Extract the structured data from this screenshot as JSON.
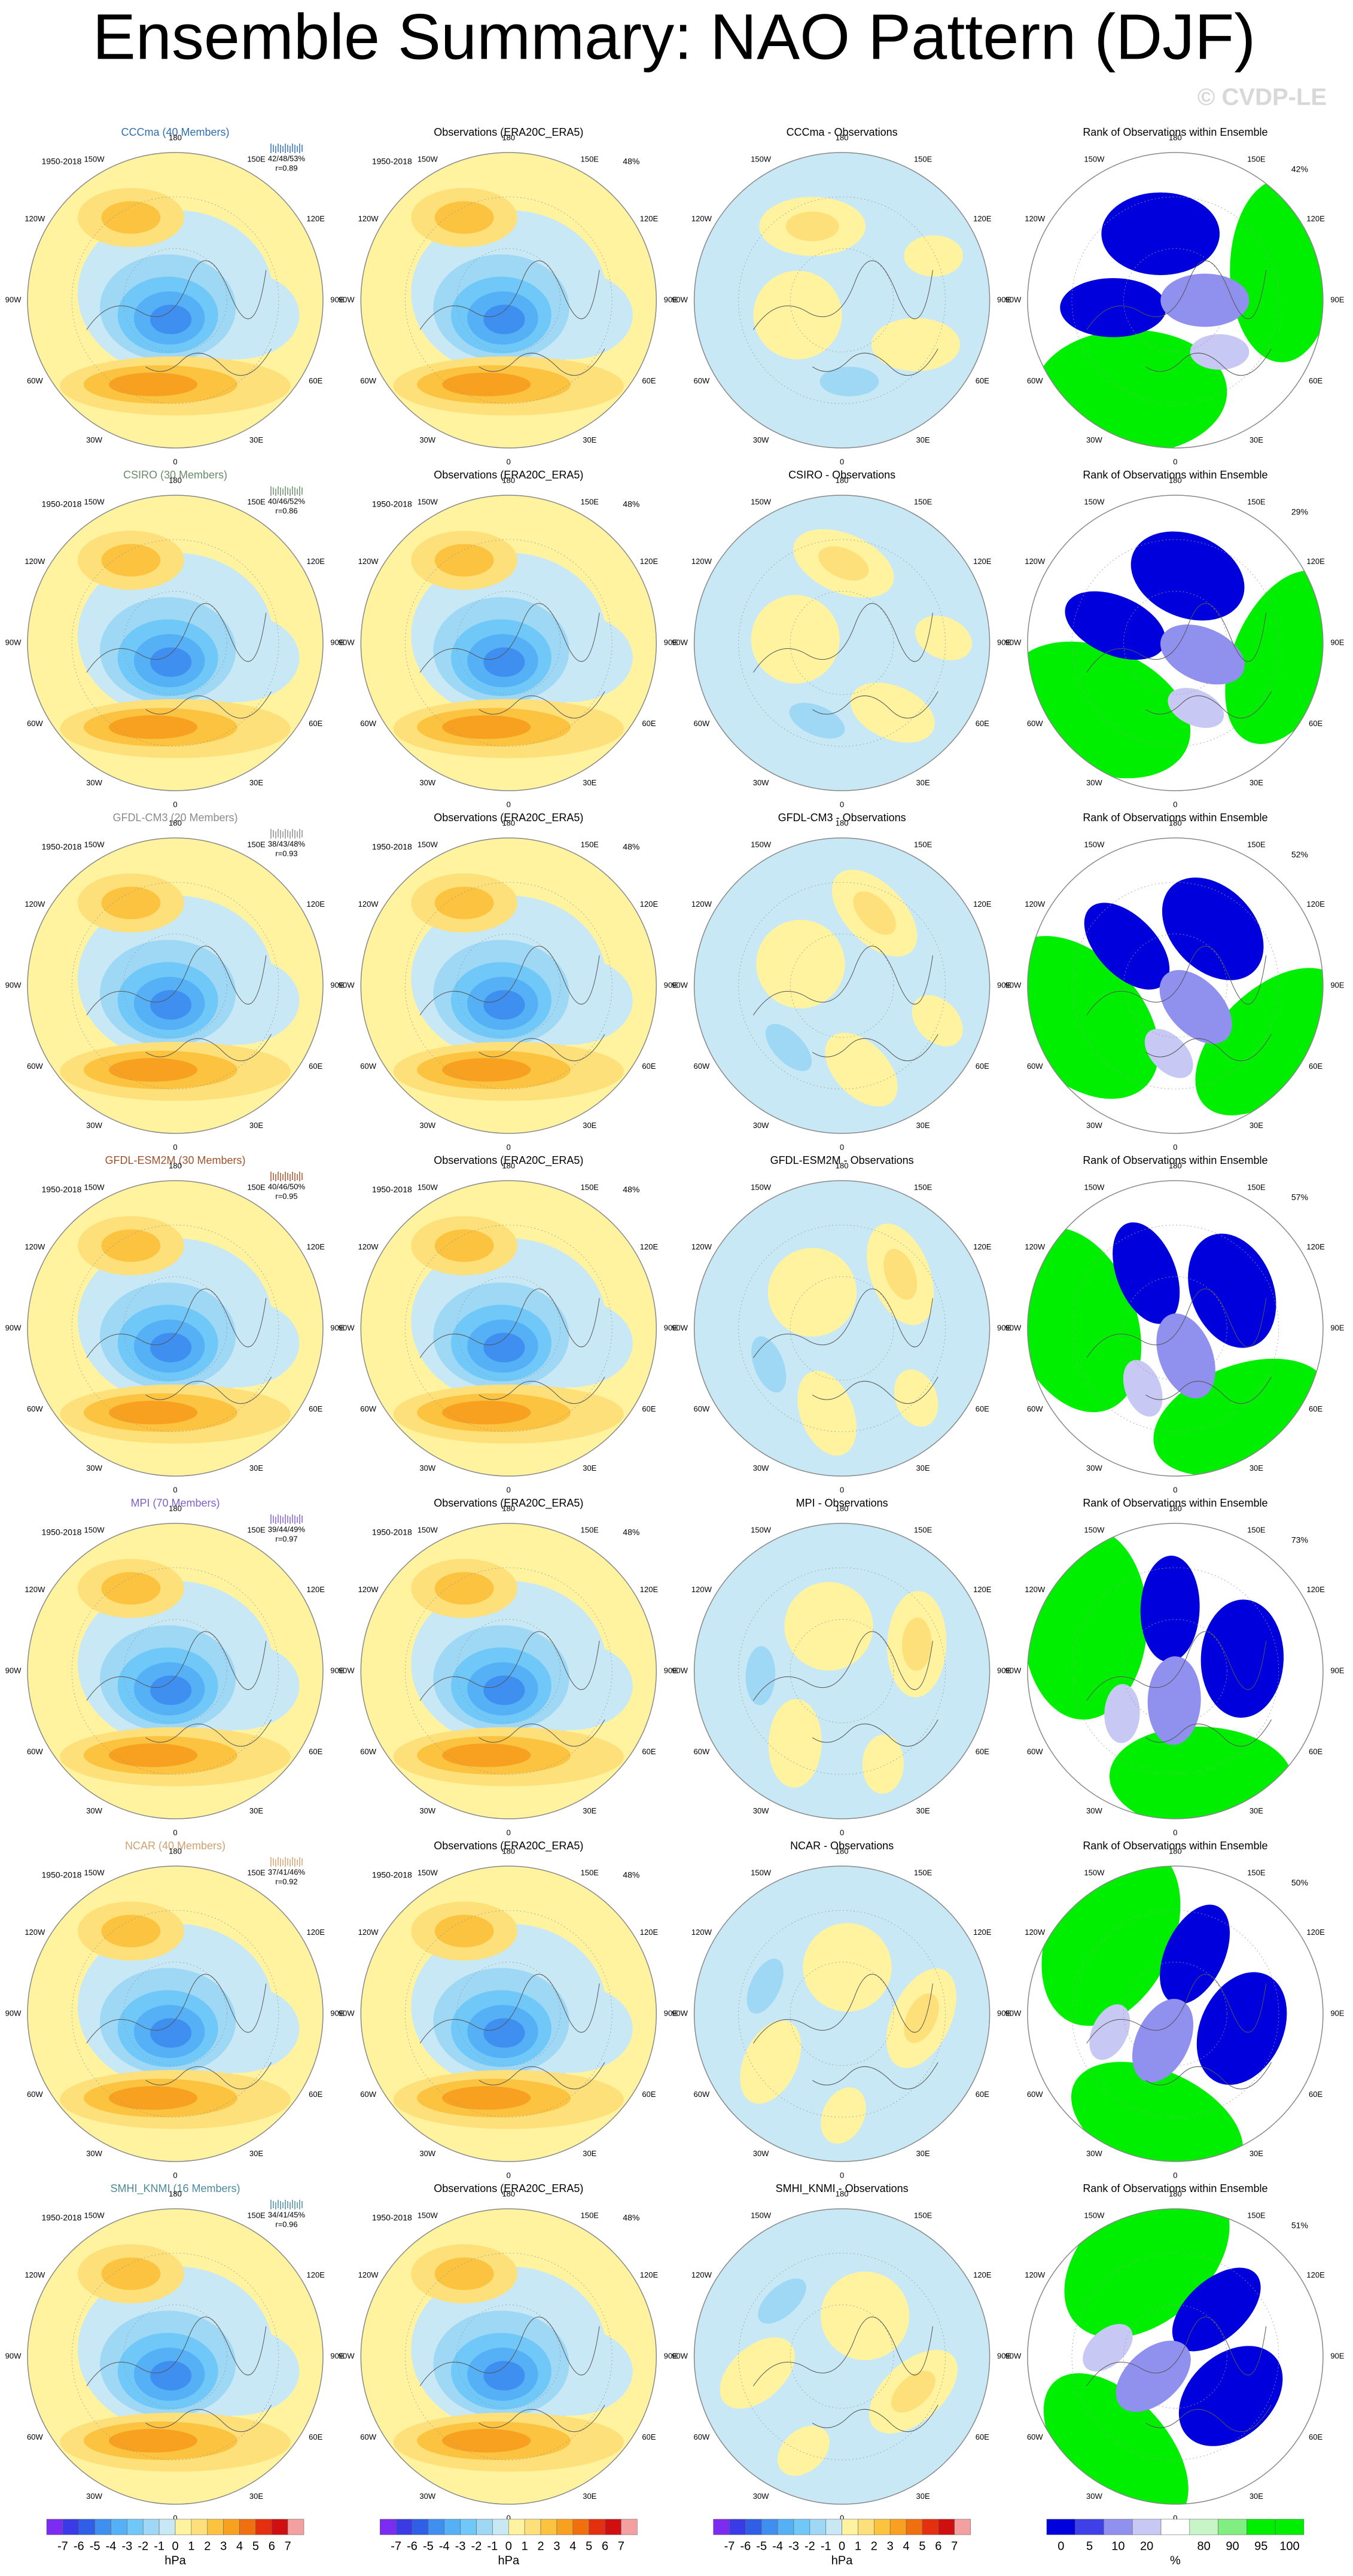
{
  "title": "Ensemble Summary: NAO Pattern (DJF)",
  "watermark": "© CVDP-LE",
  "period": "1950-2018",
  "obs_title": "Observations (ERA20C_ERA5)",
  "obs_percent": "48%",
  "rank_title": "Rank of Observations within Ensemble",
  "longitudes": [
    "0",
    "30E",
    "60E",
    "90E",
    "120E",
    "150E",
    "180",
    "150W",
    "120W",
    "90W",
    "60W",
    "30W"
  ],
  "rows": [
    {
      "model": "CCCma (40 Members)",
      "color": "#2f6fb0",
      "stats": "42/48/53%",
      "r": "r=0.89",
      "diff_title": "CCCma - Observations",
      "rank_percent": "42%"
    },
    {
      "model": "CSIRO (30 Members)",
      "color": "#6a8a6a",
      "stats": "40/46/52%",
      "r": "r=0.86",
      "diff_title": "CSIRO - Observations",
      "rank_percent": "29%"
    },
    {
      "model": "GFDL-CM3 (20 Members)",
      "color": "#8a8a8a",
      "stats": "38/43/48%",
      "r": "r=0.93",
      "diff_title": "GFDL-CM3 - Observations",
      "rank_percent": "52%"
    },
    {
      "model": "GFDL-ESM2M (30 Members)",
      "color": "#a0522d",
      "stats": "40/46/50%",
      "r": "r=0.95",
      "diff_title": "GFDL-ESM2M - Observations",
      "rank_percent": "57%"
    },
    {
      "model": "MPI (70 Members)",
      "color": "#8060c8",
      "stats": "39/44/49%",
      "r": "r=0.97",
      "diff_title": "MPI - Observations",
      "rank_percent": "73%"
    },
    {
      "model": "NCAR (40 Members)",
      "color": "#d0a070",
      "stats": "37/41/46%",
      "r": "r=0.92",
      "diff_title": "NCAR - Observations",
      "rank_percent": "50%"
    },
    {
      "model": "SMHI_KNMI (16 Members)",
      "color": "#4a8a9a",
      "stats": "34/41/45%",
      "r": "r=0.96",
      "diff_title": "SMHI_KNMI - Observations",
      "rank_percent": "51%"
    }
  ],
  "colorbars": [
    {
      "labels": [
        -7,
        -6,
        -5,
        -4,
        -3,
        -2,
        -1,
        0,
        1,
        2,
        3,
        4,
        5,
        6,
        7
      ],
      "units": "hPa",
      "colors": [
        "#7b2cf0",
        "#3a3ae6",
        "#2f5fe6",
        "#3f8ff0",
        "#55b0f5",
        "#6fc8f8",
        "#9fd8f5",
        "#c8e8f5",
        "#fff3a0",
        "#fde07a",
        "#fbc340",
        "#f8a020",
        "#f07010",
        "#e53010",
        "#d01010",
        "#f4a0a0"
      ]
    },
    {
      "labels": [
        0,
        5,
        10,
        20,
        80,
        90,
        95,
        100
      ],
      "units": "%",
      "colors": [
        "#0000dd",
        "#4040e8",
        "#9090ee",
        "#c8c8f4",
        "#ffffff",
        "#c8f5c8",
        "#80ee80",
        "#00ee00",
        "#00ee00"
      ]
    }
  ]
}
